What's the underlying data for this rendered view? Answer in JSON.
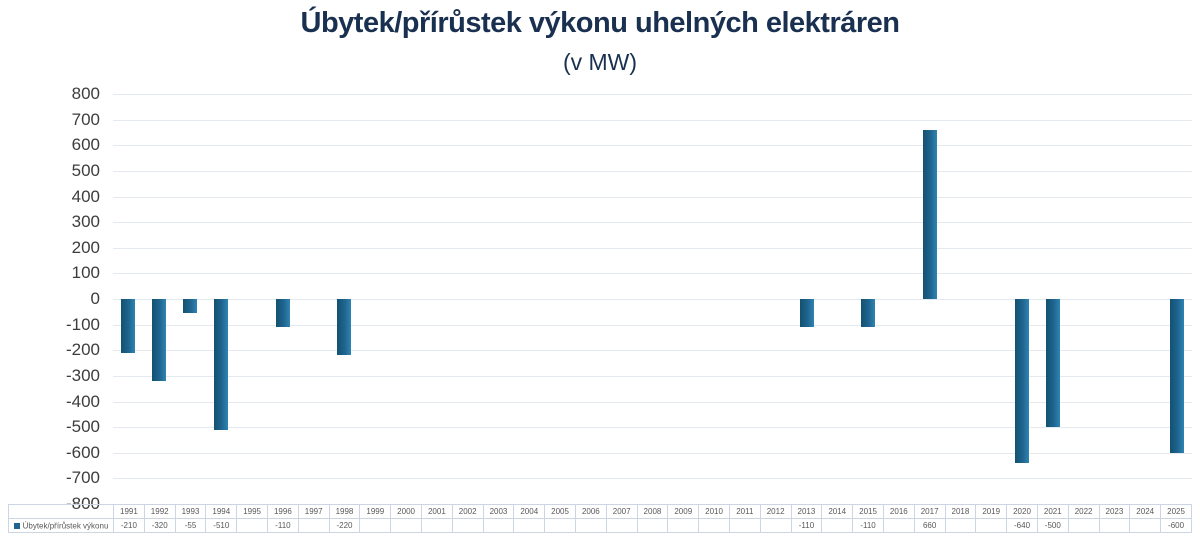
{
  "chart_data": {
    "type": "bar",
    "title": "Úbytek/přírůstek výkonu uhelných elektráren",
    "subtitle": "(v MW)",
    "categories": [
      "1991",
      "1992",
      "1993",
      "1994",
      "1995",
      "1996",
      "1997",
      "1998",
      "1999",
      "2000",
      "2001",
      "2002",
      "2003",
      "2004",
      "2005",
      "2006",
      "2007",
      "2008",
      "2009",
      "2010",
      "2011",
      "2012",
      "2013",
      "2014",
      "2015",
      "2016",
      "2017",
      "2018",
      "2019",
      "2020",
      "2021",
      "2022",
      "2023",
      "2024",
      "2025"
    ],
    "series": [
      {
        "name": "Úbytek/přírůstek výkonu",
        "values": [
          -210,
          -320,
          -55,
          -510,
          null,
          -110,
          null,
          -220,
          null,
          null,
          null,
          null,
          null,
          null,
          null,
          null,
          null,
          null,
          null,
          null,
          null,
          null,
          -110,
          null,
          -110,
          null,
          660,
          null,
          null,
          -640,
          -500,
          null,
          null,
          null,
          -600
        ]
      }
    ],
    "xlabel": "",
    "ylabel": "",
    "ylim": [
      -800,
      800
    ],
    "ytick_step": 100,
    "grid": true,
    "legend_position": "bottom-table"
  },
  "colors": {
    "bar_dark": "#14516f",
    "bar_mid": "#1e6590",
    "bar_light": "#3084b2",
    "title": "#1a3050",
    "axis_label": "#3d3d3d",
    "table_text": "#595959",
    "table_border": "#ccd6e2",
    "gridline": "#e3e9ef",
    "background": "#ffffff"
  }
}
